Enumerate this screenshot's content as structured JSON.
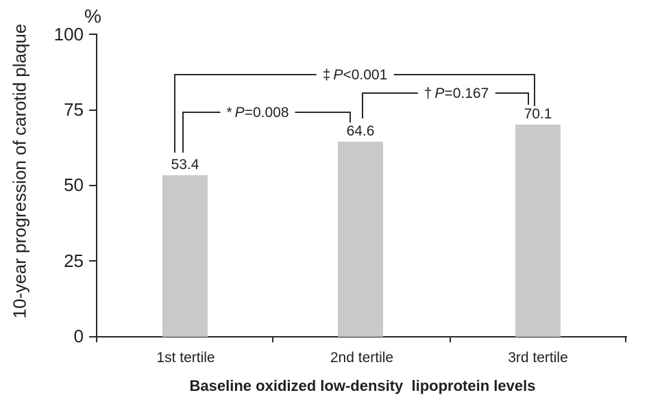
{
  "chart_data": {
    "type": "bar",
    "title": "",
    "unit_label": "%",
    "ylabel": "10-year progression of carotid plaque",
    "xlabel": "Baseline oxidized low-density  lipoprotein levels",
    "categories": [
      "1st tertile",
      "2nd tertile",
      "3rd tertile"
    ],
    "values": [
      53.4,
      64.6,
      70.1
    ],
    "value_labels": [
      "53.4",
      "64.6",
      "70.1"
    ],
    "ylim": [
      0,
      100
    ],
    "ytick_labels": [
      "100",
      "75",
      "50",
      "25",
      "0"
    ],
    "grid": false,
    "legend_position": "none",
    "bar_color": "#c9c9c9",
    "axis_color": "#2b2627",
    "significance": [
      {
        "marker": "*",
        "variable": "P",
        "relation": "=0.008",
        "between": [
          "1st tertile",
          "2nd tertile"
        ]
      },
      {
        "marker": "†",
        "variable": "P",
        "relation": "=0.167",
        "between": [
          "2nd tertile",
          "3rd tertile"
        ]
      },
      {
        "marker": "‡",
        "variable": "P",
        "relation": "<0.001",
        "between": [
          "1st tertile",
          "3rd tertile"
        ]
      }
    ]
  }
}
